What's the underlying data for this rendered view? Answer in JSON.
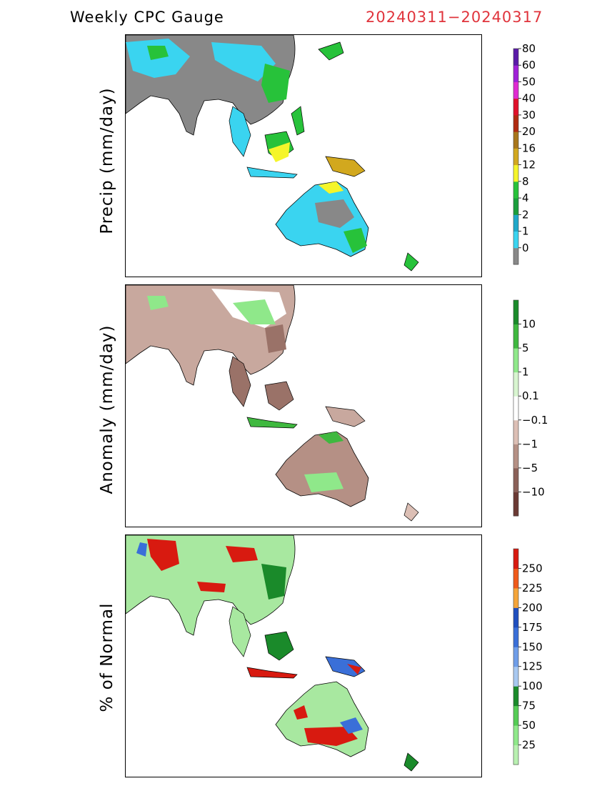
{
  "header": {
    "title": "Weekly CPC Gauge",
    "date_range": "20240311−20240317"
  },
  "panels": [
    {
      "ylabel": "Precip (mm/day)",
      "colorbar": {
        "colors": [
          "#888888",
          "#3ad4f0",
          "#1fa8c9",
          "#1a9e3c",
          "#27c23a",
          "#f5f52a",
          "#d2a81e",
          "#a8761a",
          "#b02a10",
          "#e0102a",
          "#e02ad2",
          "#a020d8",
          "#5a1aa8"
        ],
        "labels": [
          "0",
          "1",
          "2",
          "4",
          "8",
          "12",
          "16",
          "20",
          "30",
          "40",
          "50",
          "60",
          "80"
        ]
      },
      "map_colors": {
        "land": "#888888",
        "fill": "#3ad4f0",
        "wet": "#27c23a",
        "very_wet": "#f5f52a"
      }
    },
    {
      "ylabel": "Anomaly (mm/day)",
      "colorbar": {
        "colors": [
          "#6b3a34",
          "#8a6058",
          "#b59085",
          "#dcbfb5",
          "#ffffff",
          "#d8f5d0",
          "#8fe88a",
          "#3fb83f",
          "#1a8a2a"
        ],
        "labels": [
          "−10",
          "−5",
          "−1",
          "−0.1",
          "0.1",
          "1",
          "5",
          "10"
        ]
      },
      "map_colors": {
        "land": "#c8a89e",
        "dry": "#9a7268",
        "wet": "#8fe88a"
      }
    },
    {
      "ylabel": "% of Normal",
      "colorbar": {
        "colors": [
          "#b8f0b0",
          "#8fe88a",
          "#55cc55",
          "#1a8a2a",
          "#a8c8f0",
          "#6f9de8",
          "#3a6fd8",
          "#1f4fbf",
          "#f5a53a",
          "#f05a1a",
          "#d81a10"
        ],
        "labels": [
          "25",
          "50",
          "75",
          "100",
          "125",
          "150",
          "175",
          "200",
          "225",
          "250"
        ]
      },
      "map_colors": {
        "land": "#a8e8a0",
        "wet": "#3a6fd8",
        "very_wet": "#d81a10"
      }
    }
  ]
}
